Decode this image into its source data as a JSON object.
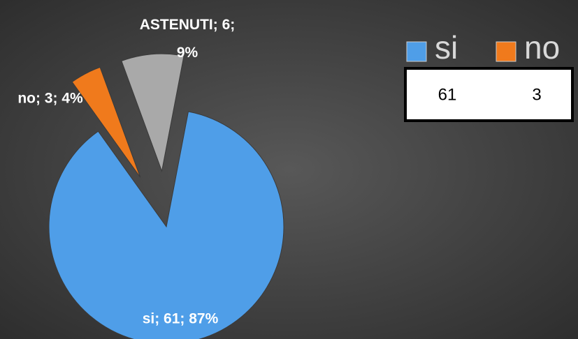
{
  "chart_data": {
    "type": "pie",
    "categories": [
      "si",
      "no",
      "ASTENUTI"
    ],
    "values": [
      61,
      3,
      6
    ],
    "value_labels": [
      "si; 61; 87%",
      "no; 3; 4%",
      "ASTENUTI; 6; 9%"
    ],
    "colors": [
      "#4f9ee8",
      "#f07a1c",
      "#a9a9a9"
    ]
  },
  "data_table": {
    "series": [
      "si",
      "no"
    ],
    "values": [
      61,
      3
    ]
  }
}
